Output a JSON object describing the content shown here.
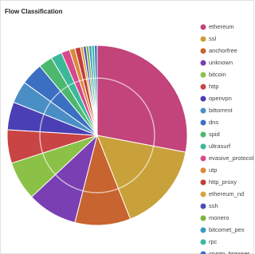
{
  "chart_data": {
    "type": "pie",
    "title": "Flow Classification",
    "categories": [
      "ethereum",
      "ssl",
      "anchorfree",
      "unknown",
      "bitcoin",
      "http",
      "openvpn",
      "bittorrent",
      "dns",
      "spid",
      "ultrasurf",
      "evasive_protocol",
      "utp",
      "http_proxy",
      "ethereum_nd",
      "ssh",
      "monero",
      "bitcomet_pex",
      "rpc",
      "crypto_browser"
    ],
    "values": [
      28,
      16,
      10,
      9,
      7,
      6,
      5,
      4,
      4,
      2.5,
      2,
      1.5,
      1,
      1,
      0.5,
      0.5,
      0.5,
      0.5,
      0.5,
      0.5
    ],
    "colors": [
      "#c2447a",
      "#c9a13a",
      "#c8642f",
      "#7a3fb3",
      "#8cc148",
      "#c94444",
      "#4a3fb4",
      "#4a8ec6",
      "#3b6fc2",
      "#4cb86e",
      "#3bb89a",
      "#d9478d",
      "#d98b3b",
      "#c43b3b",
      "#d6a33a",
      "#4a4fb5",
      "#7cb342",
      "#3a9ac4",
      "#3ab8a0",
      "#3a6fc4"
    ]
  }
}
